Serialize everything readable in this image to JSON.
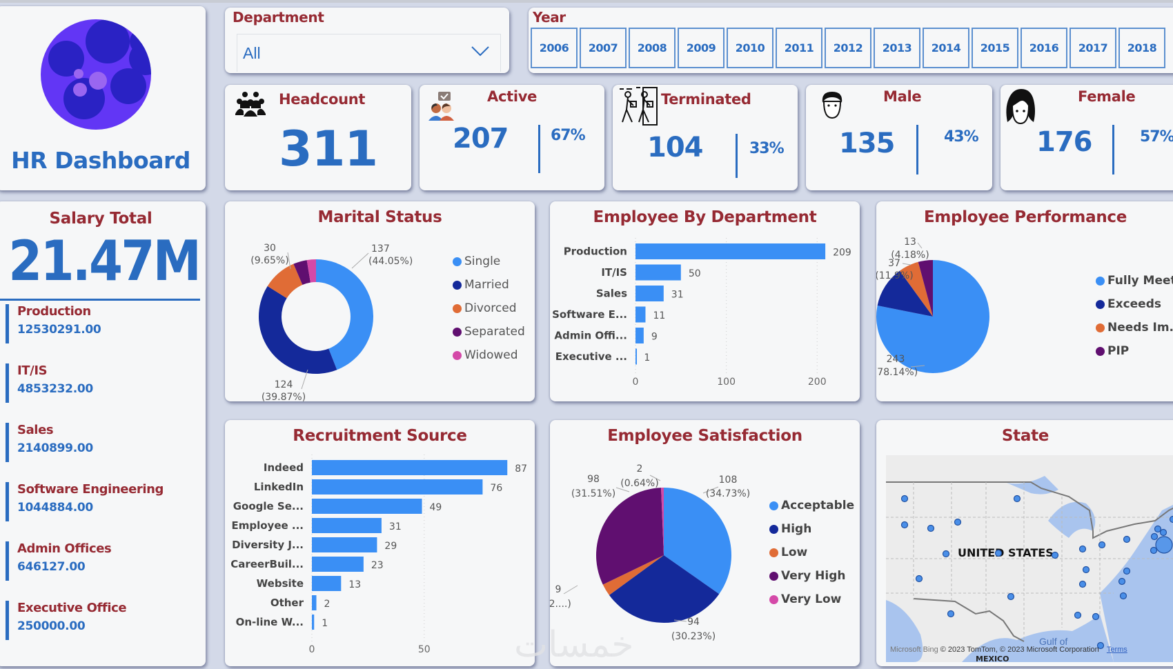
{
  "app": {
    "title": "HR Dashboard",
    "logo_icon": "moon-logo-icon"
  },
  "colors": {
    "accent_blue": "#2a6cc0",
    "title_red": "#962a33",
    "series_light_blue": "#3a8ff5",
    "series_dark_blue": "#14299a",
    "series_orange": "#e06c36",
    "series_purple": "#600f70",
    "series_pink": "#d449a8"
  },
  "filters": {
    "department": {
      "label": "Department",
      "selected": "All",
      "icon": "chevron-down-icon"
    },
    "year": {
      "label": "Year",
      "options": [
        "2006",
        "2007",
        "2008",
        "2009",
        "2010",
        "2011",
        "2012",
        "2013",
        "2014",
        "2015",
        "2016",
        "2017",
        "2018"
      ]
    }
  },
  "kpis": {
    "headcount": {
      "label": "Headcount",
      "value": "311",
      "icon": "people-group-icon"
    },
    "active": {
      "label": "Active",
      "value": "207",
      "percent": "67%",
      "icon": "users-chat-icon"
    },
    "terminated": {
      "label": "Terminated",
      "value": "104",
      "percent": "33%",
      "icon": "leaving-door-icon"
    },
    "male": {
      "label": "Male",
      "value": "135",
      "percent": "43%",
      "icon": "male-face-icon"
    },
    "female": {
      "label": "Female",
      "value": "176",
      "percent": "57%",
      "icon": "female-face-icon"
    }
  },
  "salary": {
    "title": "Salary Total",
    "total": "21.47M",
    "departments": [
      {
        "name": "Production",
        "amount": "12530291.00"
      },
      {
        "name": "IT/IS",
        "amount": "4853232.00"
      },
      {
        "name": "Sales",
        "amount": "2140899.00"
      },
      {
        "name": "Software Engineering",
        "amount": "1044884.00"
      },
      {
        "name": "Admin Offices",
        "amount": "646127.00"
      },
      {
        "name": "Executive Office",
        "amount": "250000.00"
      }
    ]
  },
  "map": {
    "title": "State",
    "country_label": "UNITED STATES",
    "gulf_label": "Gulf of",
    "mexico_label": "MEXICO",
    "attribution": "© 2023 TomTom, © 2023 Microsoft Corporation",
    "bing_label": "Microsoft Bing",
    "terms_label": "Terms"
  },
  "watermark": "خمسات",
  "chart_data": [
    {
      "id": "marital",
      "type": "pie",
      "variant": "donut",
      "title": "Marital Status",
      "categories": [
        "Single",
        "Married",
        "Divorced",
        "Separated",
        "Widowed"
      ],
      "values": [
        137,
        124,
        30,
        12,
        8
      ],
      "labels": [
        {
          "category": "Single",
          "value": "137",
          "pct": "(44.05%)"
        },
        {
          "category": "Married",
          "value": "124",
          "pct": "(39.87%)"
        },
        {
          "category": "Divorced",
          "value": "30",
          "pct": "(9.65%)"
        }
      ],
      "colors": [
        "#3a8ff5",
        "#14299a",
        "#e06c36",
        "#600f70",
        "#d449a8"
      ],
      "legend": "right"
    },
    {
      "id": "dept",
      "type": "bar",
      "orientation": "horizontal",
      "title": "Employee By Department",
      "categories": [
        "Production",
        "IT/IS",
        "Sales",
        "Software E...",
        "Admin Offi...",
        "Executive ..."
      ],
      "values": [
        209,
        50,
        31,
        11,
        9,
        1
      ],
      "xlim": [
        0,
        215
      ],
      "xticks": [
        0,
        100,
        200
      ],
      "grid": true,
      "color": "#3a8ff5"
    },
    {
      "id": "perf",
      "type": "pie",
      "title": "Employee Performance",
      "categories": [
        "Fully Meets",
        "Exceeds",
        "Needs Im...",
        "PIP"
      ],
      "values": [
        243,
        37,
        18,
        13
      ],
      "labels": [
        {
          "category": "Fully Meets",
          "value": "243",
          "pct": "(78.14%)"
        },
        {
          "category": "Exceeds",
          "value": "37",
          "pct": "(11.9%)"
        },
        {
          "category": "PIP",
          "value": "13",
          "pct": "(4.18%)"
        }
      ],
      "colors": [
        "#3a8ff5",
        "#14299a",
        "#e06c36",
        "#600f70"
      ],
      "legend": "right"
    },
    {
      "id": "recruit",
      "type": "bar",
      "orientation": "horizontal",
      "title": "Recruitment Source",
      "categories": [
        "Indeed",
        "LinkedIn",
        "Google Se...",
        "Employee ...",
        "Diversity J...",
        "CareerBuil...",
        "Website",
        "Other",
        "On-line W..."
      ],
      "values": [
        87,
        76,
        49,
        31,
        29,
        23,
        13,
        2,
        1
      ],
      "xlim": [
        0,
        90
      ],
      "xticks": [
        0,
        50
      ],
      "grid": true,
      "color": "#3a8ff5"
    },
    {
      "id": "sat",
      "type": "pie",
      "title": "Employee Satisfaction",
      "categories": [
        "Acceptable",
        "High",
        "Low",
        "Very High",
        "Very Low"
      ],
      "values": [
        108,
        94,
        9,
        98,
        2
      ],
      "labels": [
        {
          "category": "Acceptable",
          "value": "108",
          "pct": "(34.73%)"
        },
        {
          "category": "High",
          "value": "94",
          "pct": "(30.23%)"
        },
        {
          "category": "Low",
          "value": "9",
          "pct": "(2....)"
        },
        {
          "category": "Very High",
          "value": "98",
          "pct": "(31.51%)"
        },
        {
          "category": "Very Low",
          "value": "2",
          "pct": "(0.64%)"
        }
      ],
      "colors": [
        "#3a8ff5",
        "#14299a",
        "#e06c36",
        "#600f70",
        "#d449a8"
      ],
      "legend": "right"
    }
  ]
}
